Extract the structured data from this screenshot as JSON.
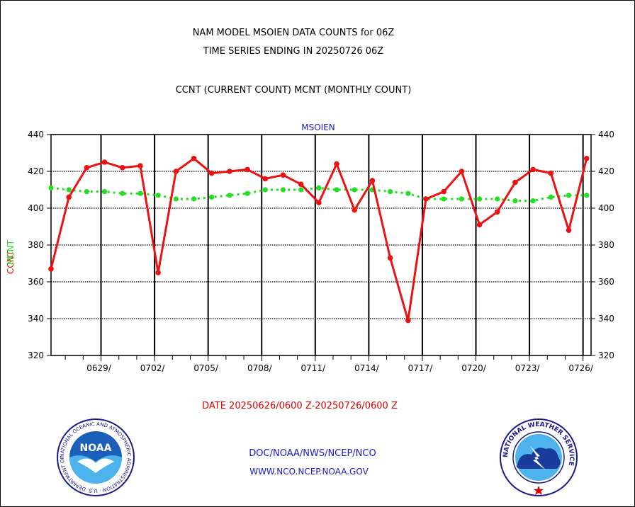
{
  "header": {
    "title_line1": "NAM MODEL MSOIEN DATA COUNTS for 06Z",
    "title_line2": "TIME SERIES ENDING IN 20250726 06Z",
    "subtitle": "CCNT (CURRENT COUNT) MCNT (MONTHLY COUNT)"
  },
  "footer": {
    "date_range": "DATE 20250626/0600 Z-20250726/0600 Z",
    "agency_line": "DOC/NOAA/NWS/NCEP/NCO",
    "website": "WWW.NCO.NCEP.NOAA.GOV",
    "noaa_logo_text": "NOAA",
    "noaa_ring_text": "NATIONAL OCEANIC AND ATMOSPHERIC ADMINISTRATION · U.S. DEPARTMENT OF COMMERCE",
    "nws_ring_text": "NATIONAL WEATHER SERVICE"
  },
  "colors": {
    "ccnt": "#ee1111",
    "mcnt": "#22dd22",
    "label_blue": "#1a1acc",
    "date_red": "#e00000"
  },
  "chart_data": {
    "type": "line",
    "title": "MSOIEN",
    "ylabel_ccnt": "CCNT",
    "ylabel_mcnt": "MCNT",
    "ylim": [
      320,
      440
    ],
    "xlim": [
      0,
      30.25
    ],
    "yticks": [
      320,
      340,
      360,
      380,
      400,
      420,
      440
    ],
    "xtick_positions": [
      2.8,
      5.8,
      8.8,
      11.8,
      14.8,
      17.8,
      20.8,
      23.8,
      26.8,
      29.8
    ],
    "xtick_labels": [
      "0629/",
      "0702/",
      "0705/",
      "0708/",
      "0711/",
      "0714/",
      "0717/",
      "0720/",
      "0723/",
      "0726/"
    ],
    "minor_xticks": [
      0.8,
      1.8,
      3.8,
      4.8,
      6.8,
      7.8,
      9.8,
      10.8,
      12.8,
      13.8,
      15.8,
      16.8,
      18.8,
      19.8,
      21.8,
      22.8,
      24.8,
      25.8,
      27.8,
      28.8
    ],
    "grid": true,
    "series": [
      {
        "name": "CCNT",
        "x": [
          0,
          1,
          2,
          3,
          4,
          5,
          6,
          7,
          8,
          9,
          10,
          11,
          12,
          13,
          14,
          15,
          16,
          17,
          18,
          19,
          20,
          21,
          22,
          23,
          24,
          25,
          26,
          27,
          28,
          29,
          30
        ],
        "values": [
          367,
          406,
          422,
          425,
          422,
          423,
          365,
          420,
          427,
          419,
          420,
          421,
          416,
          418,
          413,
          403,
          424,
          399,
          415,
          373,
          339,
          405,
          409,
          420,
          391,
          398,
          414,
          421,
          419,
          388,
          427
        ]
      },
      {
        "name": "MCNT",
        "x": [
          0,
          1,
          2,
          3,
          4,
          5,
          6,
          7,
          8,
          9,
          10,
          11,
          12,
          13,
          14,
          15,
          16,
          17,
          18,
          19,
          20,
          21,
          22,
          23,
          24,
          25,
          26,
          27,
          28,
          29,
          30
        ],
        "values": [
          411,
          410,
          409,
          409,
          408,
          408,
          407,
          405,
          405,
          406,
          407,
          408,
          410,
          410,
          410,
          411,
          410,
          410,
          410,
          409,
          408,
          405,
          405,
          405,
          405,
          405,
          404,
          404,
          406,
          407,
          407
        ]
      }
    ]
  }
}
